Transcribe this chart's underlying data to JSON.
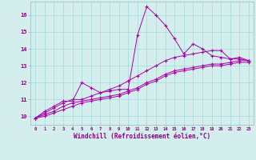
{
  "xlabel": "Windchill (Refroidissement éolien,°C)",
  "background_color": "#d4eeee",
  "grid_color": "#aadddd",
  "line_color": "#aa00aa",
  "x_values": [
    0,
    1,
    2,
    3,
    4,
    5,
    6,
    7,
    8,
    9,
    10,
    11,
    12,
    13,
    14,
    15,
    16,
    17,
    18,
    19,
    20,
    21,
    22,
    23
  ],
  "line1": [
    9.9,
    10.3,
    10.6,
    10.9,
    10.9,
    12.0,
    11.7,
    11.4,
    11.5,
    11.6,
    11.6,
    14.8,
    16.5,
    16.0,
    15.4,
    14.6,
    13.7,
    14.3,
    14.0,
    13.6,
    13.5,
    13.4,
    13.5,
    13.3
  ],
  "line2": [
    9.9,
    10.2,
    10.5,
    10.8,
    11.0,
    11.0,
    11.2,
    11.4,
    11.6,
    11.8,
    12.1,
    12.4,
    12.7,
    13.0,
    13.3,
    13.5,
    13.6,
    13.7,
    13.8,
    13.9,
    13.9,
    13.4,
    13.4,
    13.3
  ],
  "line3": [
    9.9,
    10.1,
    10.3,
    10.6,
    10.8,
    10.9,
    11.0,
    11.1,
    11.2,
    11.3,
    11.5,
    11.7,
    12.0,
    12.2,
    12.5,
    12.7,
    12.8,
    12.9,
    13.0,
    13.1,
    13.1,
    13.2,
    13.3,
    13.3
  ],
  "line4": [
    9.9,
    10.0,
    10.2,
    10.4,
    10.6,
    10.8,
    10.9,
    11.0,
    11.1,
    11.2,
    11.4,
    11.6,
    11.9,
    12.1,
    12.4,
    12.6,
    12.7,
    12.8,
    12.9,
    13.0,
    13.0,
    13.1,
    13.2,
    13.2
  ],
  "ylim": [
    9.5,
    16.8
  ],
  "xlim": [
    -0.5,
    23.5
  ],
  "yticks": [
    10,
    11,
    12,
    13,
    14,
    15,
    16
  ],
  "xticks": [
    0,
    1,
    2,
    3,
    4,
    5,
    6,
    7,
    8,
    9,
    10,
    11,
    12,
    13,
    14,
    15,
    16,
    17,
    18,
    19,
    20,
    21,
    22,
    23
  ],
  "text_color": "#880088",
  "spine_color": "#99bbbb"
}
